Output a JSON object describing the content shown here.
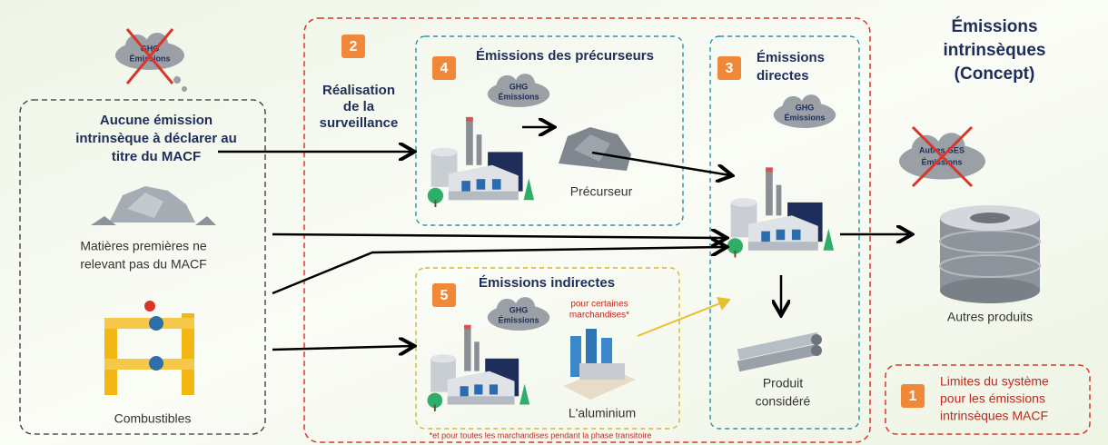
{
  "left_cloud": {
    "lines": [
      "GHG",
      "Émissions"
    ]
  },
  "left_box": {
    "title_lines": [
      "Aucune émission",
      "intrinsèque à déclarer au",
      "titre du MACF"
    ],
    "raw_materials_lines": [
      "Matières premières ne",
      "relevant pas du MACF"
    ],
    "fuels": "Combustibles"
  },
  "monitoring": {
    "number": "2",
    "label_lines": [
      "Réalisation",
      "de la",
      "surveillance"
    ]
  },
  "precursor_box": {
    "number": "4",
    "title": "Émissions des précurseurs",
    "cloud_lines": [
      "GHG",
      "Émissions"
    ],
    "label": "Précurseur"
  },
  "direct_box": {
    "number": "3",
    "title_lines": [
      "Émissions",
      "directes"
    ],
    "cloud_lines": [
      "GHG",
      "Émissions"
    ],
    "product_lines": [
      "Produit",
      "considéré"
    ]
  },
  "indirect_box": {
    "number": "5",
    "title": "Émissions indirectes",
    "cloud_lines": [
      "GHG",
      "Émissions"
    ],
    "note_lines": [
      "pour certaines",
      "marchandises*"
    ],
    "label": "L'aluminium",
    "footnote": "*et pour toutes les marchandises pendant la phase transitoire"
  },
  "embedded": {
    "title_lines": [
      "Émissions",
      "intrinsèques",
      "(Concept)"
    ],
    "cloud_lines": [
      "Autres GES",
      "Émissions"
    ],
    "label": "Autres produits"
  },
  "legend": {
    "number": "1",
    "lines": [
      "Limites du système",
      "pour les émissions",
      "intrinsèques MACF"
    ]
  }
}
